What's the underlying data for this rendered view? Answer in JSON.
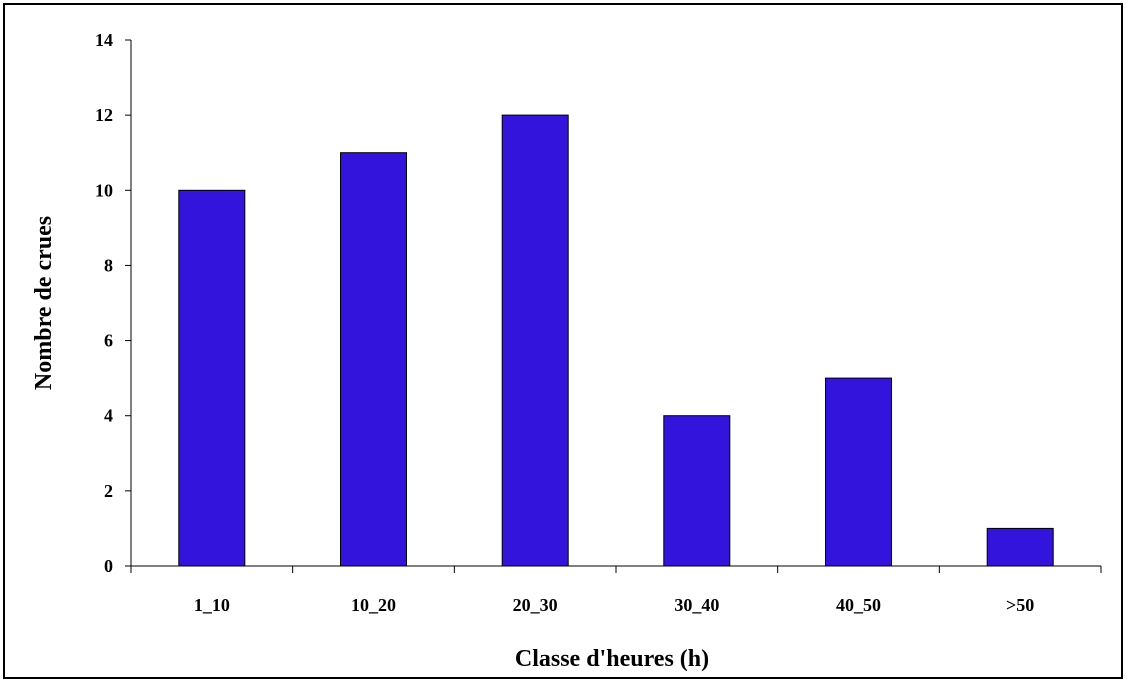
{
  "chart_data": {
    "type": "bar",
    "title": "",
    "xlabel": "Classe d'heures (h)",
    "ylabel": "Nombre de crues",
    "categories": [
      "1_10",
      "10_20",
      "20_30",
      "30_40",
      "40_50",
      ">50"
    ],
    "values": [
      10,
      11,
      12,
      4,
      5,
      1
    ],
    "ylim": [
      0,
      14
    ],
    "yticks": [
      0,
      2,
      4,
      6,
      8,
      10,
      12,
      14
    ],
    "grid": false,
    "legend": "none",
    "bar_color": "#3214DC",
    "axis_color": "#000000"
  }
}
